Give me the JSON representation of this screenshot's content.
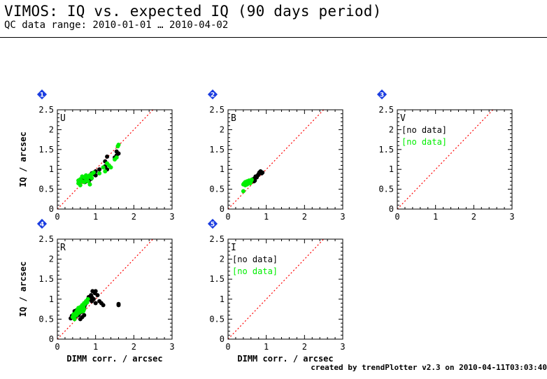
{
  "header": {
    "title": "VIMOS: IQ vs. expected IQ (90 days period)",
    "subtitle": "QC data range: 2010-01-01 … 2010-04-02"
  },
  "footer": {
    "text": "created by trendPlotter v2.3 on 2010-04-11T03:03:40"
  },
  "colors": {
    "series_a": "#000000",
    "series_b": "#00ee00",
    "reference_line": "#ff0000",
    "badge": "#1a3ce0"
  },
  "chart_data": [
    {
      "panel": "1",
      "type": "scatter",
      "band_label": "U",
      "xlabel": "",
      "ylabel": "IQ / arcsec",
      "xlim": [
        0,
        3
      ],
      "ylim": [
        0,
        2.5
      ],
      "xticks": [
        "0",
        "1",
        "2",
        "3"
      ],
      "yticks": [
        "0",
        "0.5",
        "1",
        "1.5",
        "2",
        "2.5"
      ],
      "reference_line": "y = x",
      "series": [
        {
          "color": "black",
          "points": [
            [
              0.6,
              0.72
            ],
            [
              0.65,
              0.7
            ],
            [
              0.7,
              0.78
            ],
            [
              0.75,
              0.75
            ],
            [
              0.8,
              0.8
            ],
            [
              0.85,
              0.85
            ],
            [
              0.9,
              0.9
            ],
            [
              0.95,
              0.88
            ],
            [
              1.0,
              0.95
            ],
            [
              0.72,
              0.68
            ],
            [
              0.82,
              0.7
            ],
            [
              0.88,
              0.76
            ],
            [
              1.0,
              0.85
            ],
            [
              1.1,
              1.0
            ],
            [
              1.25,
              1.2
            ],
            [
              1.3,
              1.32
            ],
            [
              1.25,
              1.08
            ],
            [
              1.3,
              1.0
            ],
            [
              1.5,
              1.3
            ],
            [
              1.55,
              1.35
            ],
            [
              1.55,
              1.45
            ],
            [
              1.6,
              1.4
            ]
          ]
        },
        {
          "color": "green",
          "points": [
            [
              0.55,
              0.65
            ],
            [
              0.55,
              0.72
            ],
            [
              0.6,
              0.6
            ],
            [
              0.6,
              0.75
            ],
            [
              0.65,
              0.7
            ],
            [
              0.7,
              0.68
            ],
            [
              0.7,
              0.8
            ],
            [
              0.75,
              0.72
            ],
            [
              0.75,
              0.85
            ],
            [
              0.8,
              0.8
            ],
            [
              0.8,
              0.7
            ],
            [
              0.85,
              0.85
            ],
            [
              0.85,
              0.62
            ],
            [
              0.9,
              0.88
            ],
            [
              0.9,
              0.78
            ],
            [
              0.95,
              0.92
            ],
            [
              0.65,
              0.82
            ],
            [
              0.58,
              0.68
            ],
            [
              1.1,
              0.9
            ],
            [
              1.2,
              1.05
            ],
            [
              1.25,
              0.95
            ],
            [
              1.3,
              1.15
            ],
            [
              1.35,
              1.1
            ],
            [
              1.4,
              1.05
            ],
            [
              1.5,
              1.25
            ],
            [
              1.55,
              1.3
            ],
            [
              1.6,
              1.62
            ],
            [
              1.58,
              1.58
            ]
          ]
        }
      ]
    },
    {
      "panel": "2",
      "type": "scatter",
      "band_label": "B",
      "xlabel": "",
      "ylabel": "",
      "xlim": [
        0,
        3
      ],
      "ylim": [
        0,
        2.5
      ],
      "xticks": [
        "0",
        "1",
        "2",
        "3"
      ],
      "yticks": [
        "0",
        "0.5",
        "1",
        "1.5",
        "2",
        "2.5"
      ],
      "reference_line": "y = x",
      "series": [
        {
          "color": "black",
          "points": [
            [
              0.6,
              0.7
            ],
            [
              0.65,
              0.75
            ],
            [
              0.7,
              0.78
            ],
            [
              0.72,
              0.82
            ],
            [
              0.75,
              0.8
            ],
            [
              0.78,
              0.85
            ],
            [
              0.8,
              0.88
            ],
            [
              0.82,
              0.92
            ],
            [
              0.85,
              0.95
            ],
            [
              0.88,
              0.9
            ],
            [
              0.9,
              0.92
            ],
            [
              0.7,
              0.72
            ],
            [
              0.68,
              0.7
            ]
          ]
        },
        {
          "color": "green",
          "points": [
            [
              0.4,
              0.45
            ],
            [
              0.4,
              0.62
            ],
            [
              0.42,
              0.65
            ],
            [
              0.45,
              0.6
            ],
            [
              0.45,
              0.68
            ],
            [
              0.48,
              0.65
            ],
            [
              0.5,
              0.62
            ],
            [
              0.5,
              0.7
            ],
            [
              0.52,
              0.66
            ],
            [
              0.55,
              0.68
            ],
            [
              0.55,
              0.72
            ],
            [
              0.6,
              0.7
            ],
            [
              0.62,
              0.74
            ],
            [
              0.58,
              0.65
            ]
          ]
        }
      ]
    },
    {
      "panel": "3",
      "type": "scatter",
      "band_label": "V",
      "xlabel": "",
      "ylabel": "",
      "xlim": [
        0,
        3
      ],
      "ylim": [
        0,
        2.5
      ],
      "xticks": [
        "0",
        "1",
        "2",
        "3"
      ],
      "yticks": [
        "0",
        "0.5",
        "1",
        "1.5",
        "2",
        "2.5"
      ],
      "reference_line": "y = x",
      "no_data_labels": [
        "[no data]",
        "[no data]"
      ],
      "series": []
    },
    {
      "panel": "4",
      "type": "scatter",
      "band_label": "R",
      "xlabel": "DIMM corr. / arcsec",
      "ylabel": "IQ / arcsec",
      "xlim": [
        0,
        3
      ],
      "ylim": [
        0,
        2.5
      ],
      "xticks": [
        "0",
        "1",
        "2",
        "3"
      ],
      "yticks": [
        "0",
        "0.5",
        "1",
        "1.5",
        "2",
        "2.5"
      ],
      "reference_line": "y = x",
      "series": [
        {
          "color": "black",
          "points": [
            [
              0.35,
              0.52
            ],
            [
              0.38,
              0.58
            ],
            [
              0.4,
              0.55
            ],
            [
              0.42,
              0.6
            ],
            [
              0.45,
              0.55
            ],
            [
              0.48,
              0.62
            ],
            [
              0.5,
              0.58
            ],
            [
              0.5,
              0.65
            ],
            [
              0.55,
              0.6
            ],
            [
              0.55,
              0.7
            ],
            [
              0.58,
              0.65
            ],
            [
              0.6,
              0.72
            ],
            [
              0.62,
              0.68
            ],
            [
              0.65,
              0.75
            ],
            [
              0.65,
              0.55
            ],
            [
              0.7,
              0.8
            ],
            [
              0.72,
              0.85
            ],
            [
              0.75,
              0.9
            ],
            [
              0.78,
              0.95
            ],
            [
              0.8,
              1.0
            ],
            [
              0.82,
              1.05
            ],
            [
              0.85,
              1.0
            ],
            [
              0.88,
              1.1
            ],
            [
              0.9,
              1.05
            ],
            [
              0.92,
              1.2
            ],
            [
              0.95,
              1.0
            ],
            [
              0.98,
              1.15
            ],
            [
              1.0,
              1.2
            ],
            [
              1.05,
              1.1
            ],
            [
              1.1,
              0.95
            ],
            [
              1.15,
              0.9
            ],
            [
              1.2,
              0.85
            ],
            [
              1.0,
              0.9
            ],
            [
              0.9,
              0.95
            ],
            [
              1.6,
              0.85
            ],
            [
              1.6,
              0.88
            ],
            [
              0.6,
              0.5
            ],
            [
              0.7,
              0.6
            ],
            [
              0.45,
              0.7
            ],
            [
              0.5,
              0.72
            ]
          ]
        },
        {
          "color": "green",
          "points": [
            [
              0.4,
              0.55
            ],
            [
              0.42,
              0.62
            ],
            [
              0.45,
              0.58
            ],
            [
              0.48,
              0.65
            ],
            [
              0.5,
              0.68
            ],
            [
              0.52,
              0.72
            ],
            [
              0.55,
              0.65
            ],
            [
              0.58,
              0.75
            ],
            [
              0.6,
              0.8
            ],
            [
              0.62,
              0.78
            ],
            [
              0.65,
              0.85
            ],
            [
              0.68,
              0.82
            ],
            [
              0.7,
              0.9
            ],
            [
              0.72,
              0.88
            ],
            [
              0.75,
              0.95
            ],
            [
              0.6,
              0.68
            ],
            [
              0.55,
              0.78
            ],
            [
              0.65,
              0.72
            ],
            [
              0.7,
              0.75
            ],
            [
              0.5,
              0.6
            ],
            [
              0.8,
              1.0
            ],
            [
              0.78,
              0.92
            ],
            [
              0.45,
              0.5
            ],
            [
              0.68,
              0.7
            ]
          ]
        }
      ]
    },
    {
      "panel": "5",
      "type": "scatter",
      "band_label": "I",
      "xlabel": "DIMM corr. / arcsec",
      "ylabel": "",
      "xlim": [
        0,
        3
      ],
      "ylim": [
        0,
        2.5
      ],
      "xticks": [
        "0",
        "1",
        "2",
        "3"
      ],
      "yticks": [
        "0",
        "0.5",
        "1",
        "1.5",
        "2",
        "2.5"
      ],
      "reference_line": "y = x",
      "no_data_labels": [
        "[no data]",
        "[no data]"
      ],
      "series": []
    }
  ]
}
